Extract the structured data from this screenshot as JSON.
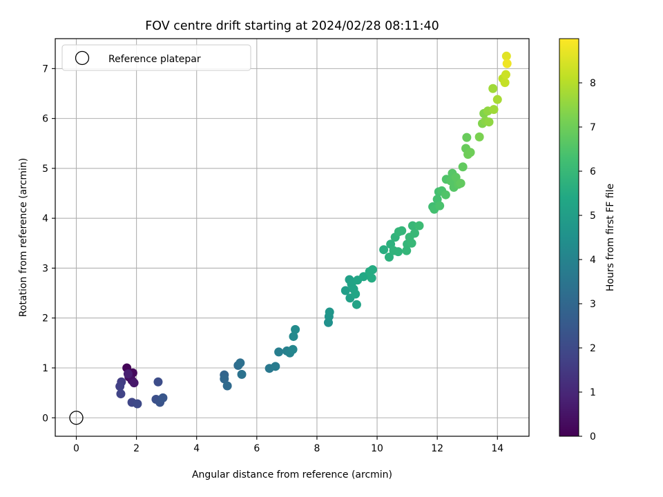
{
  "chart_data": {
    "type": "scatter",
    "title": "FOV centre drift starting at 2024/02/28 08:11:40",
    "xlabel": "Angular distance from reference (arcmin)",
    "ylabel": "Rotation from reference (arcmin)",
    "xlim": [
      -0.7,
      15.05
    ],
    "ylim": [
      -0.37,
      7.6
    ],
    "xticks": [
      0,
      2,
      4,
      6,
      8,
      10,
      12,
      14
    ],
    "yticks": [
      0,
      1,
      2,
      3,
      4,
      5,
      6,
      7
    ],
    "grid": true,
    "legend": {
      "placement": "upper-left",
      "entries": [
        {
          "label": "Reference platepar",
          "marker": "open-circle"
        }
      ]
    },
    "reference_point": {
      "x": 0,
      "y": 0
    },
    "colorbar": {
      "label": "Hours from first FF file",
      "range": [
        0,
        9
      ],
      "ticks": [
        0,
        1,
        2,
        3,
        4,
        5,
        6,
        7,
        8
      ],
      "colormap": "viridis"
    },
    "points": [
      {
        "x": 1.68,
        "y": 1.0,
        "c": 0.1
      },
      {
        "x": 1.88,
        "y": 0.9,
        "c": 0.2
      },
      {
        "x": 1.75,
        "y": 0.82,
        "c": 0.3
      },
      {
        "x": 1.85,
        "y": 0.75,
        "c": 0.4
      },
      {
        "x": 1.92,
        "y": 0.7,
        "c": 0.6
      },
      {
        "x": 1.72,
        "y": 0.88,
        "c": 0.8
      },
      {
        "x": 1.5,
        "y": 0.72,
        "c": 1.6
      },
      {
        "x": 1.45,
        "y": 0.63,
        "c": 1.7
      },
      {
        "x": 1.48,
        "y": 0.48,
        "c": 1.8
      },
      {
        "x": 1.85,
        "y": 0.31,
        "c": 1.9
      },
      {
        "x": 2.03,
        "y": 0.28,
        "c": 2.0
      },
      {
        "x": 2.72,
        "y": 0.72,
        "c": 2.1
      },
      {
        "x": 2.65,
        "y": 0.37,
        "c": 2.2
      },
      {
        "x": 2.78,
        "y": 0.31,
        "c": 2.3
      },
      {
        "x": 2.88,
        "y": 0.4,
        "c": 2.4
      },
      {
        "x": 4.92,
        "y": 0.86,
        "c": 2.9
      },
      {
        "x": 4.92,
        "y": 0.78,
        "c": 3.0
      },
      {
        "x": 5.02,
        "y": 0.64,
        "c": 3.1
      },
      {
        "x": 5.38,
        "y": 1.05,
        "c": 3.2
      },
      {
        "x": 5.45,
        "y": 1.1,
        "c": 3.3
      },
      {
        "x": 5.5,
        "y": 0.87,
        "c": 3.4
      },
      {
        "x": 6.42,
        "y": 0.99,
        "c": 3.6
      },
      {
        "x": 6.62,
        "y": 1.03,
        "c": 3.7
      },
      {
        "x": 6.73,
        "y": 1.32,
        "c": 3.8
      },
      {
        "x": 7.0,
        "y": 1.34,
        "c": 3.9
      },
      {
        "x": 7.1,
        "y": 1.3,
        "c": 4.0
      },
      {
        "x": 7.2,
        "y": 1.37,
        "c": 4.1
      },
      {
        "x": 7.22,
        "y": 1.63,
        "c": 4.2
      },
      {
        "x": 7.28,
        "y": 1.77,
        "c": 4.3
      },
      {
        "x": 8.38,
        "y": 1.91,
        "c": 4.5
      },
      {
        "x": 8.4,
        "y": 2.03,
        "c": 4.6
      },
      {
        "x": 8.42,
        "y": 2.12,
        "c": 4.7
      },
      {
        "x": 8.95,
        "y": 2.55,
        "c": 5.0
      },
      {
        "x": 9.08,
        "y": 2.77,
        "c": 5.1
      },
      {
        "x": 9.15,
        "y": 2.68,
        "c": 5.2
      },
      {
        "x": 9.1,
        "y": 2.4,
        "c": 5.1
      },
      {
        "x": 9.22,
        "y": 2.58,
        "c": 5.2
      },
      {
        "x": 9.28,
        "y": 2.48,
        "c": 5.3
      },
      {
        "x": 9.32,
        "y": 2.27,
        "c": 5.2
      },
      {
        "x": 9.35,
        "y": 2.76,
        "c": 5.3
      },
      {
        "x": 9.55,
        "y": 2.83,
        "c": 5.4
      },
      {
        "x": 9.75,
        "y": 2.93,
        "c": 5.5
      },
      {
        "x": 9.85,
        "y": 2.97,
        "c": 5.5
      },
      {
        "x": 9.82,
        "y": 2.8,
        "c": 5.5
      },
      {
        "x": 10.22,
        "y": 3.37,
        "c": 5.6
      },
      {
        "x": 10.4,
        "y": 3.22,
        "c": 5.7
      },
      {
        "x": 10.45,
        "y": 3.48,
        "c": 5.7
      },
      {
        "x": 10.55,
        "y": 3.35,
        "c": 5.8
      },
      {
        "x": 10.6,
        "y": 3.62,
        "c": 5.8
      },
      {
        "x": 10.72,
        "y": 3.73,
        "c": 5.9
      },
      {
        "x": 10.82,
        "y": 3.75,
        "c": 5.9
      },
      {
        "x": 10.7,
        "y": 3.33,
        "c": 5.8
      },
      {
        "x": 10.98,
        "y": 3.35,
        "c": 5.9
      },
      {
        "x": 11.0,
        "y": 3.48,
        "c": 5.9
      },
      {
        "x": 11.08,
        "y": 3.62,
        "c": 6.0
      },
      {
        "x": 11.15,
        "y": 3.5,
        "c": 6.0
      },
      {
        "x": 11.18,
        "y": 3.85,
        "c": 6.0
      },
      {
        "x": 11.25,
        "y": 3.7,
        "c": 6.0
      },
      {
        "x": 11.4,
        "y": 3.85,
        "c": 6.1
      },
      {
        "x": 11.85,
        "y": 4.23,
        "c": 6.2
      },
      {
        "x": 11.9,
        "y": 4.18,
        "c": 6.3
      },
      {
        "x": 12.0,
        "y": 4.38,
        "c": 6.3
      },
      {
        "x": 12.05,
        "y": 4.53,
        "c": 6.3
      },
      {
        "x": 12.08,
        "y": 4.25,
        "c": 6.4
      },
      {
        "x": 12.15,
        "y": 4.55,
        "c": 6.4
      },
      {
        "x": 12.28,
        "y": 4.47,
        "c": 6.5
      },
      {
        "x": 12.3,
        "y": 4.78,
        "c": 6.5
      },
      {
        "x": 12.45,
        "y": 4.75,
        "c": 6.6
      },
      {
        "x": 12.5,
        "y": 4.9,
        "c": 6.6
      },
      {
        "x": 12.55,
        "y": 4.62,
        "c": 6.6
      },
      {
        "x": 12.62,
        "y": 4.82,
        "c": 6.7
      },
      {
        "x": 12.7,
        "y": 4.68,
        "c": 6.7
      },
      {
        "x": 12.78,
        "y": 4.7,
        "c": 6.8
      },
      {
        "x": 12.85,
        "y": 5.03,
        "c": 6.8
      },
      {
        "x": 12.95,
        "y": 5.4,
        "c": 6.9
      },
      {
        "x": 12.98,
        "y": 5.62,
        "c": 6.9
      },
      {
        "x": 13.02,
        "y": 5.28,
        "c": 7.0
      },
      {
        "x": 13.1,
        "y": 5.32,
        "c": 7.0
      },
      {
        "x": 13.4,
        "y": 5.63,
        "c": 7.2
      },
      {
        "x": 13.5,
        "y": 5.9,
        "c": 7.3
      },
      {
        "x": 13.55,
        "y": 6.1,
        "c": 7.3
      },
      {
        "x": 13.6,
        "y": 5.95,
        "c": 7.4
      },
      {
        "x": 13.68,
        "y": 6.15,
        "c": 7.5
      },
      {
        "x": 13.72,
        "y": 5.93,
        "c": 7.5
      },
      {
        "x": 13.85,
        "y": 6.6,
        "c": 7.7
      },
      {
        "x": 13.88,
        "y": 6.18,
        "c": 7.7
      },
      {
        "x": 14.0,
        "y": 6.38,
        "c": 7.8
      },
      {
        "x": 14.18,
        "y": 6.8,
        "c": 8.1
      },
      {
        "x": 14.25,
        "y": 6.72,
        "c": 8.2
      },
      {
        "x": 14.28,
        "y": 6.88,
        "c": 8.3
      },
      {
        "x": 14.3,
        "y": 7.25,
        "c": 8.6
      },
      {
        "x": 14.32,
        "y": 7.1,
        "c": 8.8
      }
    ]
  }
}
